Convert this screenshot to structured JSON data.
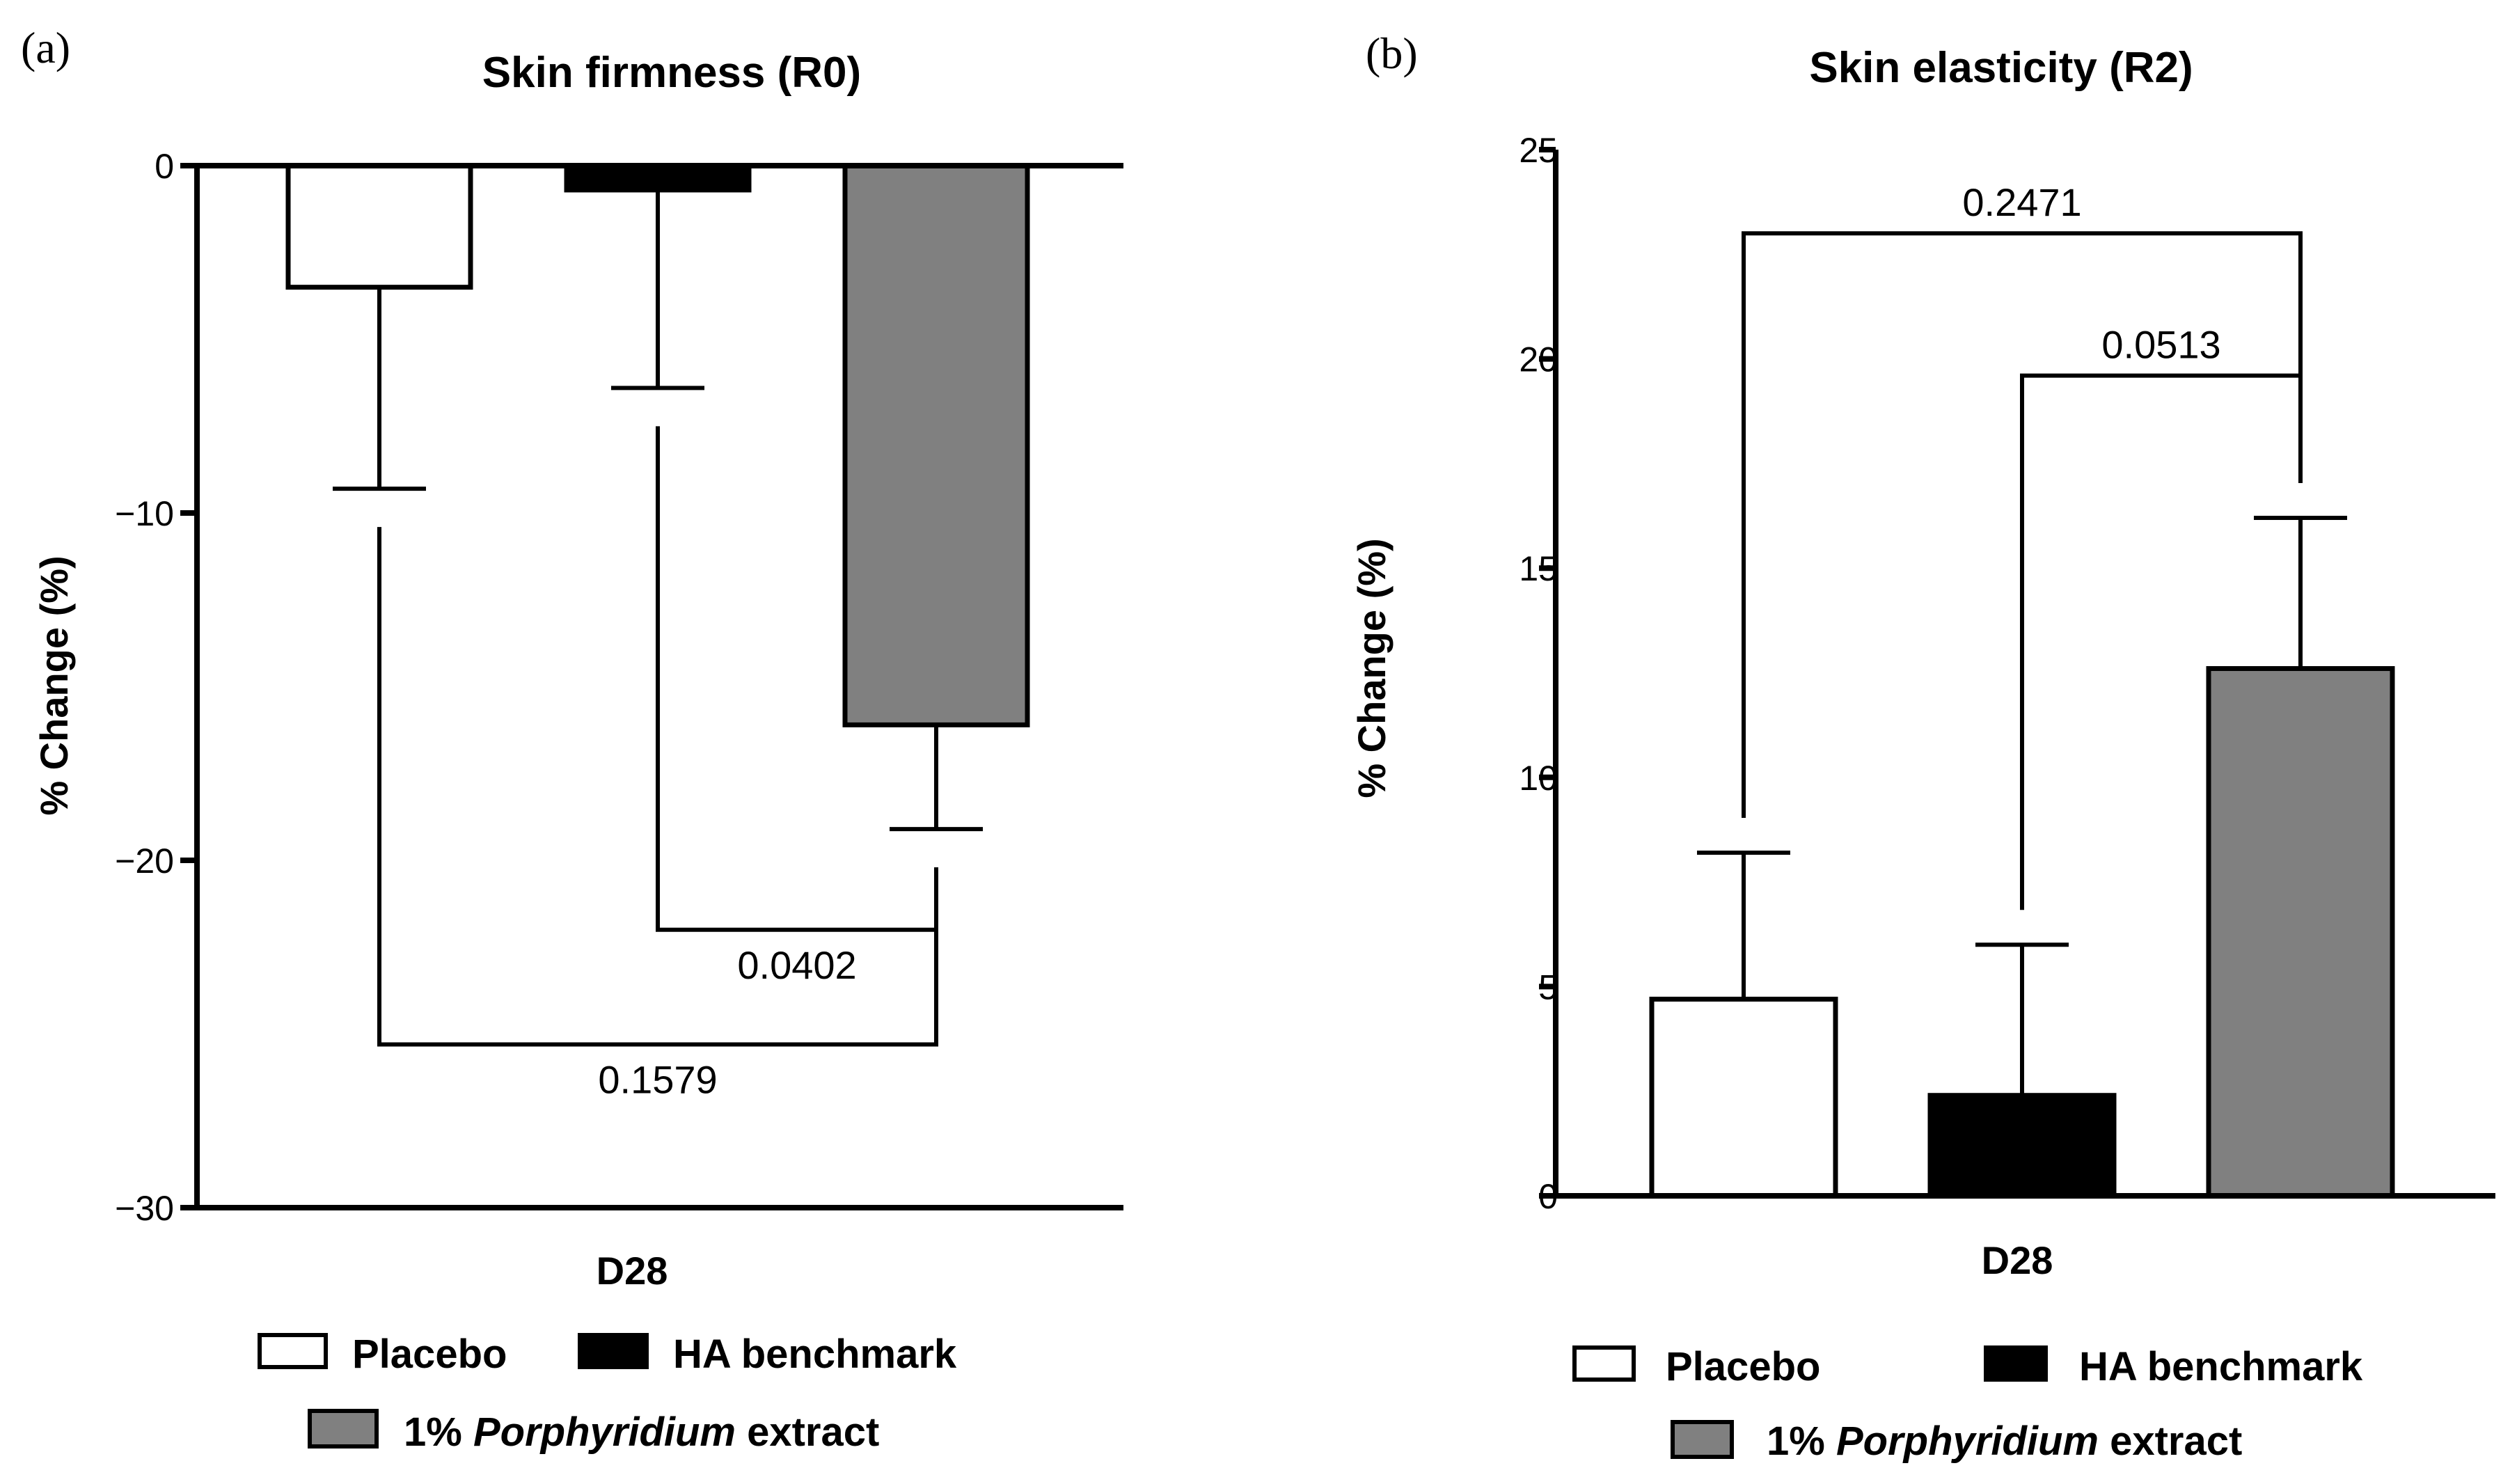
{
  "colors": {
    "placebo": "#ffffff",
    "ha_benchmark": "#000000",
    "porphyridium": "#808080",
    "stroke": "#000000"
  },
  "chart_data": [
    {
      "type": "bar",
      "panel_label": "(a)",
      "title": "Skin firmness (R0)",
      "xlabel": "D28",
      "ylabel": "% Change (%)",
      "ylim": [
        -30,
        0
      ],
      "yticks": [
        0,
        -10,
        -20,
        -30
      ],
      "ytick_labels": [
        "0",
        "−10",
        "−20",
        "−30"
      ],
      "categories": [
        "Placebo",
        "HA benchmark",
        "1% Porphyridium extract"
      ],
      "values": [
        -3.5,
        -0.7,
        -16.1
      ],
      "errors": [
        5.8,
        5.7,
        3.0
      ],
      "comparisons": [
        {
          "from": 1,
          "to": 2,
          "p": "0.0402",
          "level": -22
        },
        {
          "from": 0,
          "to": 2,
          "p": "0.1579",
          "level": -25.3
        }
      ],
      "legend": {
        "entries": [
          "Placebo",
          "HA benchmark"
        ],
        "second_row_prefix": "1% ",
        "second_row_italic": "Porphyridium",
        "second_row_suffix": " extract"
      }
    },
    {
      "type": "bar",
      "panel_label": "(b)",
      "title": "Skin elasticity (R2)",
      "xlabel": "D28",
      "ylabel": "% Change (%)",
      "ylim": [
        0,
        25
      ],
      "yticks": [
        0,
        5,
        10,
        15,
        20,
        25
      ],
      "ytick_labels": [
        "0",
        "5",
        "10",
        "15",
        "20",
        "25"
      ],
      "categories": [
        "Placebo",
        "HA benchmark",
        "1% Porphyridium extract"
      ],
      "values": [
        4.7,
        2.4,
        12.6
      ],
      "errors": [
        3.5,
        3.6,
        3.6
      ],
      "comparisons": [
        {
          "from": 1,
          "to": 2,
          "p": "0.0513",
          "level": 19.6
        },
        {
          "from": 0,
          "to": 2,
          "p": "0.2471",
          "level": 23.0
        }
      ],
      "legend": {
        "entries": [
          "Placebo",
          "HA benchmark"
        ],
        "second_row_prefix": "1% ",
        "second_row_italic": "Porphyridium",
        "second_row_suffix": " extract"
      }
    }
  ]
}
